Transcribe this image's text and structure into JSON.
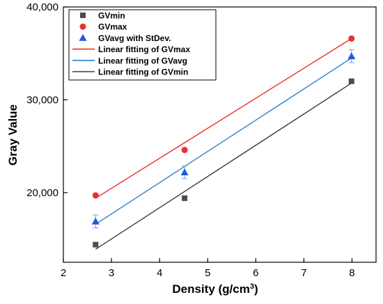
{
  "chart_data": {
    "type": "scatter",
    "xlabel": "Density (g/cm³)",
    "xlabel_base": "Density (g/cm",
    "xlabel_sup": "3",
    "xlabel_tail": ")",
    "ylabel": "Gray Value",
    "xlim": [
      2,
      8.5
    ],
    "ylim": [
      12500,
      40000
    ],
    "x_ticks": [
      2,
      3,
      4,
      5,
      6,
      7,
      8
    ],
    "x_tick_labels": [
      "2",
      "3",
      "4",
      "5",
      "6",
      "7",
      "8"
    ],
    "y_ticks": [
      20000,
      30000,
      40000
    ],
    "y_tick_labels": [
      "20,000",
      "30,000",
      "40,000"
    ],
    "legend_position": "top-left",
    "series": [
      {
        "name": "GVmin",
        "kind": "points",
        "marker": "square",
        "color": "#4d4d4d",
        "x": [
          2.67,
          4.52,
          7.99
        ],
        "y": [
          14400,
          19400,
          32000
        ]
      },
      {
        "name": "GVmax",
        "kind": "points",
        "marker": "circle",
        "color": "#e8312f",
        "x": [
          2.67,
          4.52,
          7.99
        ],
        "y": [
          19700,
          24600,
          36600
        ]
      },
      {
        "name": "GVavg with StDev.",
        "kind": "points",
        "marker": "triangle",
        "color": "#1f5bd6",
        "x": [
          2.67,
          4.52,
          7.99
        ],
        "y": [
          16900,
          22200,
          34700
        ],
        "err": [
          700,
          700,
          700
        ]
      },
      {
        "name": "Linear fitting of GVmax",
        "kind": "line",
        "color": "#e8312f",
        "x": [
          2.67,
          7.99
        ],
        "y": [
          19400,
          36600
        ]
      },
      {
        "name": "Linear fitting of GVavg",
        "kind": "line",
        "color": "#2f7fc4",
        "x": [
          2.67,
          7.99
        ],
        "y": [
          16600,
          34500
        ]
      },
      {
        "name": "Linear fitting of GVmin",
        "kind": "line",
        "color": "#3a3a3a",
        "x": [
          2.67,
          7.99
        ],
        "y": [
          13900,
          31800
        ]
      }
    ]
  }
}
